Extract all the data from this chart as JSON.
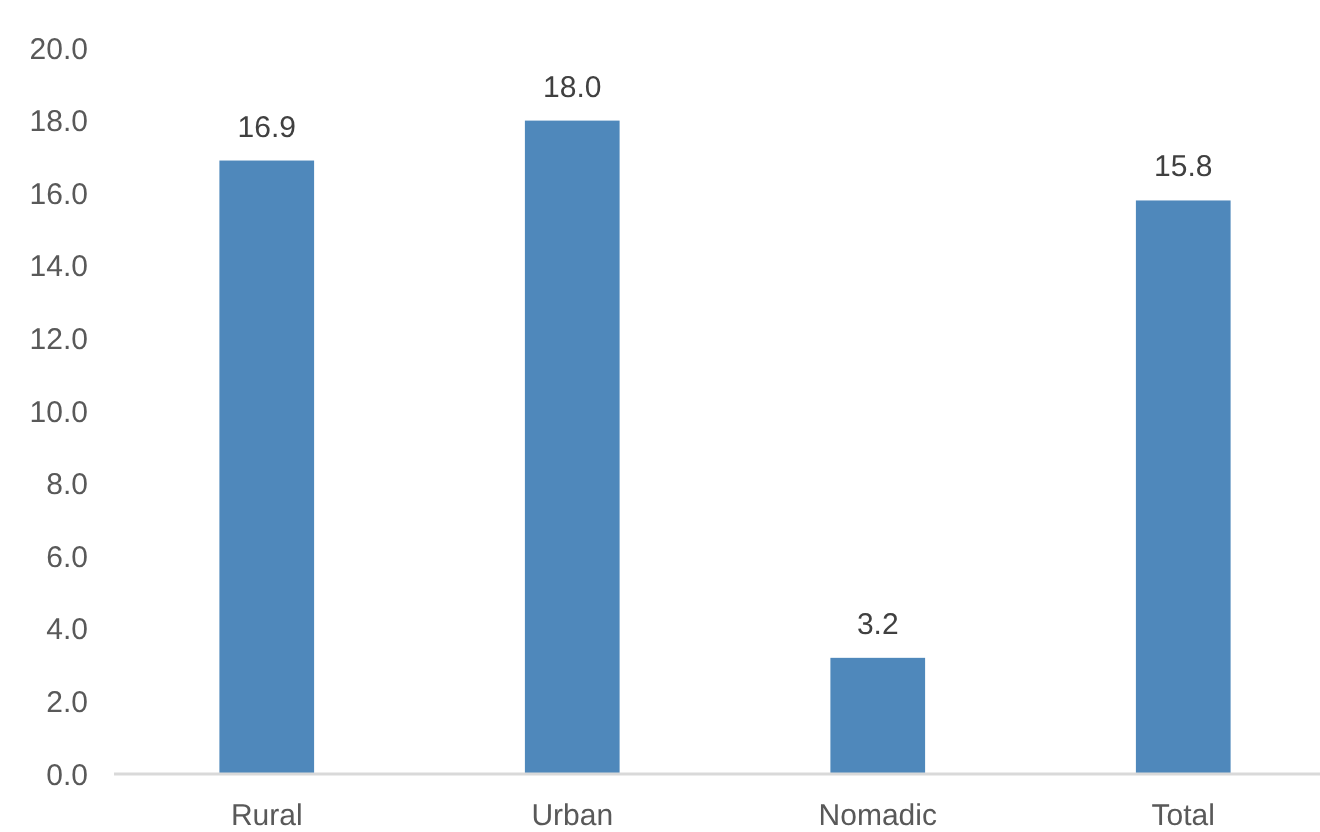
{
  "chart_data": {
    "type": "bar",
    "categories": [
      "Rural",
      "Urban",
      "Nomadic",
      "Total"
    ],
    "values": [
      16.9,
      18.0,
      3.2,
      15.8
    ],
    "color": "#4f88bb",
    "value_labels": [
      "16.9",
      "18.0",
      "3.2",
      "15.8"
    ],
    "ylim": [
      0,
      20
    ],
    "yticks": [
      {
        "value": 0,
        "label": "0.0"
      },
      {
        "value": 2,
        "label": "2.0"
      },
      {
        "value": 4,
        "label": "4.0"
      },
      {
        "value": 6,
        "label": "6.0"
      },
      {
        "value": 8,
        "label": "8.0"
      },
      {
        "value": 10,
        "label": "10.0"
      },
      {
        "value": 12,
        "label": "12.0"
      },
      {
        "value": 14,
        "label": "14.0"
      },
      {
        "value": 16,
        "label": "16.0"
      },
      {
        "value": 18,
        "label": "18.0"
      },
      {
        "value": 20,
        "label": "20.0"
      }
    ],
    "grid": false
  }
}
